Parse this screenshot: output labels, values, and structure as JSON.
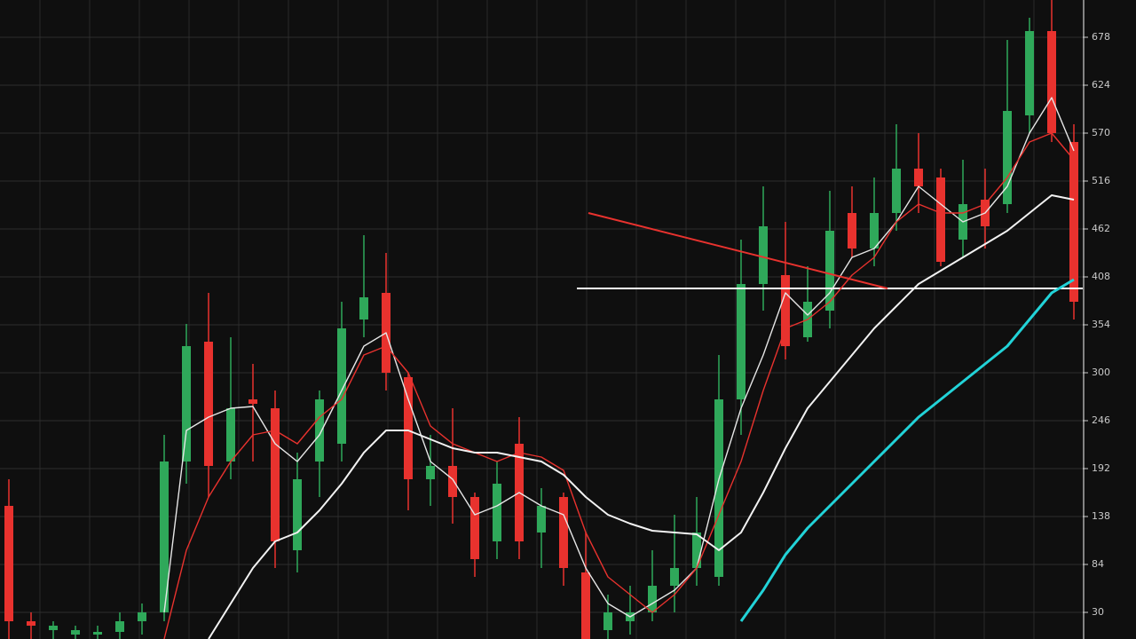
{
  "chart_data": {
    "type": "candlestick",
    "ylim": [
      0,
      720
    ],
    "yticks": [
      30,
      84,
      138,
      192,
      246,
      300,
      354,
      408,
      462,
      516,
      570,
      624,
      678
    ],
    "grid": true,
    "up_color": "#2fa85a",
    "down_color": "#e8322e",
    "open": [
      150,
      20,
      10,
      5,
      5,
      8,
      20,
      30,
      200,
      335,
      200,
      270,
      260,
      100,
      200,
      220,
      360,
      390,
      295,
      180,
      195,
      160,
      110,
      220,
      120,
      160,
      75,
      10,
      20,
      30,
      60,
      80,
      70,
      270,
      400,
      410,
      340,
      370,
      480,
      440,
      480,
      530,
      520,
      450,
      495,
      490,
      590,
      685,
      560
    ],
    "high": [
      180,
      30,
      20,
      15,
      15,
      30,
      40,
      230,
      355,
      390,
      340,
      310,
      280,
      210,
      280,
      380,
      455,
      435,
      300,
      230,
      260,
      165,
      200,
      250,
      170,
      165,
      120,
      50,
      60,
      100,
      140,
      160,
      320,
      450,
      510,
      470,
      420,
      505,
      510,
      520,
      580,
      570,
      530,
      540,
      530,
      675,
      700,
      720,
      580
    ],
    "low": [
      0,
      0,
      0,
      0,
      0,
      0,
      5,
      20,
      175,
      160,
      180,
      200,
      80,
      75,
      160,
      200,
      340,
      280,
      145,
      150,
      130,
      70,
      90,
      90,
      80,
      60,
      0,
      0,
      5,
      20,
      30,
      60,
      60,
      230,
      370,
      315,
      335,
      350,
      430,
      420,
      460,
      480,
      420,
      430,
      440,
      480,
      570,
      560,
      360
    ],
    "close": [
      20,
      15,
      15,
      10,
      8,
      20,
      30,
      200,
      330,
      195,
      260,
      265,
      110,
      180,
      270,
      350,
      385,
      300,
      180,
      195,
      160,
      90,
      175,
      110,
      150,
      80,
      0,
      30,
      30,
      60,
      80,
      120,
      270,
      400,
      465,
      330,
      380,
      460,
      440,
      480,
      530,
      510,
      425,
      490,
      465,
      595,
      685,
      570,
      380
    ],
    "lines": [
      {
        "color": "#e6e6e6",
        "width": 1.4,
        "values": [
          null,
          null,
          null,
          null,
          null,
          null,
          null,
          30,
          235,
          250,
          260,
          262,
          220,
          200,
          230,
          280,
          330,
          345,
          270,
          200,
          180,
          140,
          150,
          165,
          150,
          140,
          80,
          40,
          25,
          40,
          55,
          80,
          180,
          260,
          320,
          390,
          365,
          390,
          430,
          440,
          470,
          510,
          490,
          470,
          480,
          510,
          570,
          610,
          550
        ]
      },
      {
        "color": "#e8322e",
        "width": 1.4,
        "values": [
          null,
          null,
          null,
          null,
          null,
          null,
          null,
          0,
          100,
          160,
          200,
          230,
          235,
          220,
          250,
          270,
          320,
          330,
          300,
          240,
          220,
          210,
          200,
          210,
          205,
          190,
          120,
          70,
          50,
          30,
          50,
          80,
          140,
          200,
          280,
          350,
          360,
          380,
          410,
          430,
          470,
          490,
          480,
          480,
          490,
          520,
          560,
          570,
          540
        ]
      },
      {
        "color": "#f2f2f2",
        "width": 2,
        "values": [
          null,
          null,
          null,
          null,
          null,
          null,
          null,
          null,
          null,
          0,
          40,
          80,
          110,
          120,
          145,
          175,
          210,
          235,
          235,
          225,
          215,
          210,
          210,
          205,
          200,
          185,
          160,
          140,
          130,
          122,
          120,
          118,
          100,
          120,
          165,
          215,
          260,
          290,
          320,
          350,
          375,
          400,
          415,
          430,
          445,
          460,
          480,
          500,
          495
        ]
      },
      {
        "color": "#22d3d8",
        "width": 3,
        "values": [
          null,
          null,
          null,
          null,
          null,
          null,
          null,
          null,
          null,
          null,
          null,
          null,
          null,
          null,
          null,
          null,
          null,
          null,
          null,
          null,
          null,
          null,
          null,
          null,
          null,
          null,
          null,
          null,
          null,
          null,
          null,
          null,
          null,
          20,
          55,
          95,
          125,
          150,
          175,
          200,
          225,
          250,
          270,
          290,
          310,
          330,
          360,
          390,
          405
        ]
      }
    ],
    "level": 395,
    "level_color": "#ffffff"
  }
}
